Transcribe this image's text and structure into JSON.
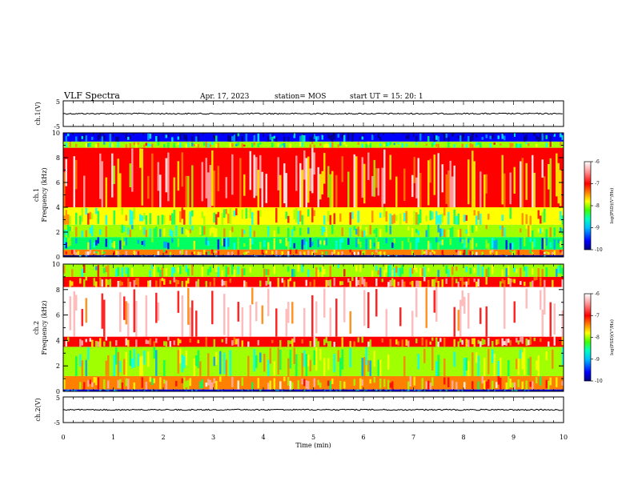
{
  "header": {
    "title": "VLF Spectra",
    "date": "Apr. 17, 2023",
    "station": "station= MOS",
    "start": "start  UT =   15: 20: 1"
  },
  "chart_data": [
    {
      "type": "line",
      "panel": "ch1-waveform",
      "ylabel": "ch.1(V)",
      "ylim": [
        -5,
        5
      ],
      "y_ticks": [
        "5",
        "-5"
      ],
      "baseline": 0
    },
    {
      "type": "heatmap",
      "panel": "ch1-spectrogram",
      "ylabel": "ch.1\nFrequency (kHz)",
      "ylabel_lines": [
        "ch.1",
        "Frequency (kHz)"
      ],
      "ylim": [
        0,
        10
      ],
      "y_ticks": [
        "0",
        "2",
        "4",
        "6",
        "8",
        "10"
      ],
      "xlim": [
        0,
        10
      ],
      "bands_khz": [
        {
          "from": 0.0,
          "to": 0.15,
          "level": -10
        },
        {
          "from": 0.15,
          "to": 0.6,
          "level": -7.2
        },
        {
          "from": 0.6,
          "to": 1.6,
          "level": -8.6
        },
        {
          "from": 1.6,
          "to": 2.6,
          "level": -8.2
        },
        {
          "from": 2.6,
          "to": 4.0,
          "level": -7.8
        },
        {
          "from": 4.0,
          "to": 8.8,
          "level": -6.9
        },
        {
          "from": 8.8,
          "to": 9.3,
          "level": -8.0
        },
        {
          "from": 9.3,
          "to": 10.0,
          "level": -9.6
        }
      ],
      "colorbar": {
        "min": -10,
        "max": -6,
        "ticks": [
          "-6",
          "-7",
          "-8",
          "-9",
          "-10"
        ],
        "label": "log(PSD)(V²/Hz)"
      }
    },
    {
      "type": "heatmap",
      "panel": "ch2-spectrogram",
      "ylabel": "ch.2\nFrequency (kHz)",
      "ylabel_lines": [
        "ch.2",
        "Frequency (kHz)"
      ],
      "ylim": [
        0,
        10
      ],
      "y_ticks": [
        "0",
        "2",
        "4",
        "6",
        "8",
        "10"
      ],
      "xlim": [
        0,
        10
      ],
      "bands_khz": [
        {
          "from": 0.0,
          "to": 0.15,
          "level": -9.6
        },
        {
          "from": 0.15,
          "to": 1.2,
          "level": -7.2
        },
        {
          "from": 1.2,
          "to": 3.5,
          "level": -8.1
        },
        {
          "from": 3.5,
          "to": 4.3,
          "level": -7.0
        },
        {
          "from": 4.3,
          "to": 8.2,
          "level": -6.0
        },
        {
          "from": 8.2,
          "to": 9.0,
          "level": -7.0
        },
        {
          "from": 9.0,
          "to": 10.0,
          "level": -8.0
        }
      ],
      "colorbar": {
        "min": -10,
        "max": -6,
        "ticks": [
          "-6",
          "-7",
          "-8",
          "-9",
          "-10"
        ],
        "label": "log(PSD)(V²/Hz)"
      }
    },
    {
      "type": "line",
      "panel": "ch2-waveform",
      "ylabel": "ch.2(V)",
      "ylim": [
        -5,
        5
      ],
      "y_ticks": [
        "5",
        "-5"
      ],
      "baseline": 0
    }
  ],
  "x_axis": {
    "label": "Time  (min)",
    "range": [
      0,
      10
    ],
    "ticks": [
      "0",
      "1",
      "2",
      "3",
      "4",
      "5",
      "6",
      "7",
      "8",
      "9",
      "10"
    ]
  },
  "colors": {
    "palette": [
      "#000080",
      "#0000ff",
      "#00a0ff",
      "#00ffff",
      "#00ff60",
      "#a0ff00",
      "#ffff00",
      "#ff8000",
      "#ff0000",
      "#ffb0b0",
      "#ffffff"
    ],
    "line": "#000000"
  }
}
